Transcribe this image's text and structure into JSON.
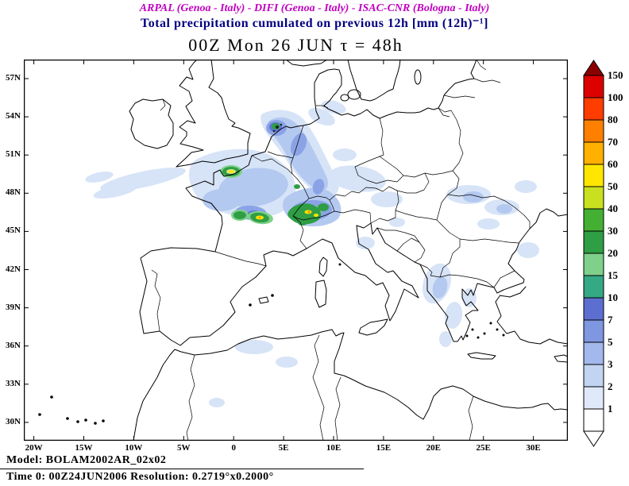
{
  "header": {
    "credits": "ARPAL (Genoa - Italy)  -  DIFI (Genoa - Italy)  -  ISAC-CNR (Bologna - Italy)",
    "subtitle": "Total precipitation cumulated on previous 12h [mm (12h)⁻¹]",
    "map_title": "00Z Mon 26 JUN  τ = 48h"
  },
  "axes": {
    "lat_labels": [
      "57N",
      "54N",
      "51N",
      "48N",
      "45N",
      "42N",
      "39N",
      "36N",
      "33N",
      "30N"
    ],
    "lon_labels": [
      "20W",
      "15W",
      "10W",
      "5W",
      "0",
      "5E",
      "10E",
      "15E",
      "20E",
      "25E",
      "30E"
    ]
  },
  "colorbar": {
    "unit_values": [
      "150",
      "100",
      "80",
      "70",
      "60",
      "50",
      "40",
      "30",
      "20",
      "15",
      "10",
      "7",
      "5",
      "3",
      "2",
      "1"
    ],
    "cell_colors": [
      "#dd0000",
      "#ff3d00",
      "#ff7f00",
      "#ffb000",
      "#ffe600",
      "#c8e020",
      "#44b033",
      "#2f9e44",
      "#7fd08a",
      "#35a884",
      "#5c6fd0",
      "#7f96e0",
      "#a3b8ec",
      "#c3d4f2",
      "#dfe9f9",
      "#ffffff"
    ],
    "arrow_top_color": "#8b0000",
    "arrow_bottom_color": "#ffffff"
  },
  "footer": {
    "model_line": "Model: BOLAM2002AR_02x02",
    "time_line": "Time 0: 00Z24JUN2006   Resolution: 0.2719°x0.2000°"
  }
}
